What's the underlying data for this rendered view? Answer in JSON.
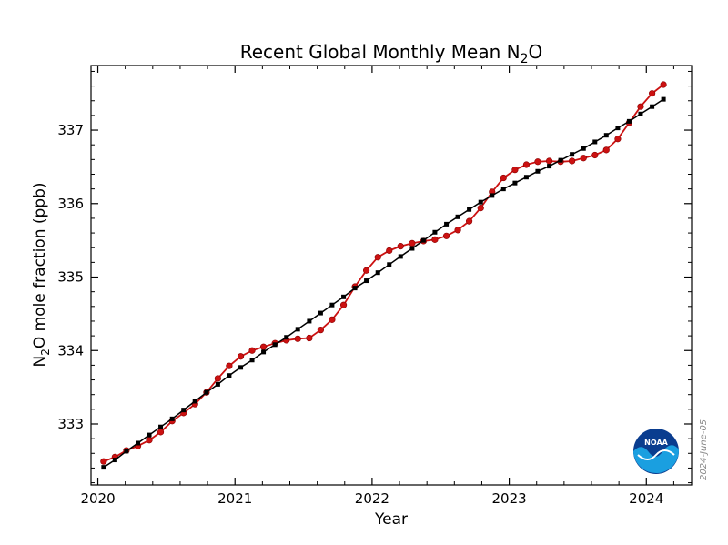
{
  "chart_data": {
    "type": "line",
    "title_text": "Recent Global Monthly Mean N",
    "title_sub": "2",
    "title_tail": "O",
    "xlabel": "Year",
    "ylabel_main": "N",
    "ylabel_sub": "2",
    "ylabel_tail": "O mole fraction (ppb)",
    "xlim": [
      2019.95,
      2024.33
    ],
    "ylim": [
      332.17,
      337.88
    ],
    "xticks": [
      2020,
      2021,
      2022,
      2023,
      2024
    ],
    "xtick_labels": [
      "2020",
      "2021",
      "2022",
      "2023",
      "2024"
    ],
    "yticks": [
      333,
      334,
      335,
      336,
      337
    ],
    "ytick_labels": [
      "333",
      "334",
      "335",
      "336",
      "337"
    ],
    "grid": false,
    "date_stamp": "2024-June-05",
    "logo_text": "NOAA",
    "colors": {
      "monthly": "#cc1111",
      "trend": "#000000"
    },
    "series": [
      {
        "key": "monthly",
        "x": [
          2020.042,
          2020.125,
          2020.208,
          2020.292,
          2020.375,
          2020.458,
          2020.542,
          2020.625,
          2020.708,
          2020.792,
          2020.875,
          2020.958,
          2021.042,
          2021.125,
          2021.208,
          2021.292,
          2021.375,
          2021.458,
          2021.542,
          2021.625,
          2021.708,
          2021.792,
          2021.875,
          2021.958,
          2022.042,
          2022.125,
          2022.208,
          2022.292,
          2022.375,
          2022.458,
          2022.542,
          2022.625,
          2022.708,
          2022.792,
          2022.875,
          2022.958,
          2023.042,
          2023.125,
          2023.208,
          2023.292,
          2023.375,
          2023.458,
          2023.542,
          2023.625,
          2023.708,
          2023.792,
          2023.875,
          2023.958,
          2024.042,
          2024.125
        ],
        "values": [
          332.49,
          332.55,
          332.64,
          332.7,
          332.78,
          332.89,
          333.04,
          333.15,
          333.27,
          333.43,
          333.62,
          333.79,
          333.92,
          334.0,
          334.05,
          334.1,
          334.14,
          334.16,
          334.17,
          334.28,
          334.42,
          334.62,
          334.87,
          335.09,
          335.27,
          335.36,
          335.42,
          335.46,
          335.49,
          335.51,
          335.56,
          335.64,
          335.76,
          335.94,
          336.16,
          336.35,
          336.46,
          336.53,
          336.57,
          336.58,
          336.57,
          336.58,
          336.62,
          336.66,
          336.73,
          336.88,
          337.1,
          337.32,
          337.5,
          337.62
        ]
      },
      {
        "key": "trend",
        "x": [
          2020.042,
          2020.125,
          2020.208,
          2020.292,
          2020.375,
          2020.458,
          2020.542,
          2020.625,
          2020.708,
          2020.792,
          2020.875,
          2020.958,
          2021.042,
          2021.125,
          2021.208,
          2021.292,
          2021.375,
          2021.458,
          2021.542,
          2021.625,
          2021.708,
          2021.792,
          2021.875,
          2021.958,
          2022.042,
          2022.125,
          2022.208,
          2022.292,
          2022.375,
          2022.458,
          2022.542,
          2022.625,
          2022.708,
          2022.792,
          2022.875,
          2022.958,
          2023.042,
          2023.125,
          2023.208,
          2023.292,
          2023.375,
          2023.458,
          2023.542,
          2023.625,
          2023.708,
          2023.792,
          2023.875,
          2023.958,
          2024.042,
          2024.125
        ],
        "values": [
          332.41,
          332.51,
          332.63,
          332.74,
          332.85,
          332.96,
          333.07,
          333.19,
          333.31,
          333.43,
          333.54,
          333.66,
          333.77,
          333.87,
          333.98,
          334.08,
          334.18,
          334.29,
          334.4,
          334.51,
          334.62,
          334.73,
          334.85,
          334.95,
          335.06,
          335.17,
          335.28,
          335.39,
          335.5,
          335.61,
          335.72,
          335.82,
          335.92,
          336.02,
          336.11,
          336.2,
          336.28,
          336.36,
          336.44,
          336.51,
          336.59,
          336.67,
          336.75,
          336.84,
          336.93,
          337.03,
          337.12,
          337.22,
          337.32,
          337.42
        ]
      }
    ]
  }
}
